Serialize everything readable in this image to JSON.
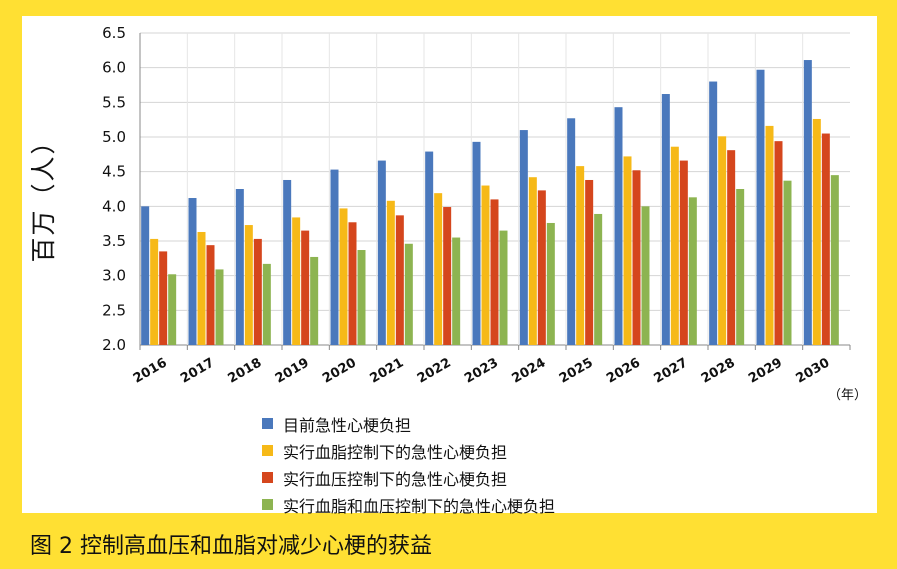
{
  "caption": "图 2  控制高血压和血脂对减少心梗的获益",
  "chart_data": {
    "type": "bar",
    "title": "",
    "ylabel": "百万（人）",
    "xlabel": "（年）",
    "ylim": [
      2.0,
      6.5
    ],
    "yticks": [
      "2.0",
      "2.5",
      "3.0",
      "3.5",
      "4.0",
      "4.5",
      "5.0",
      "5.5",
      "6.0",
      "6.5"
    ],
    "categories": [
      "2016",
      "2017",
      "2018",
      "2019",
      "2020",
      "2021",
      "2022",
      "2023",
      "2024",
      "2025",
      "2026",
      "2027",
      "2028",
      "2029",
      "2030"
    ],
    "series": [
      {
        "name": "目前急性心梗负担",
        "color": "#4A78BC",
        "values": [
          4.0,
          4.12,
          4.25,
          4.38,
          4.53,
          4.66,
          4.79,
          4.93,
          5.1,
          5.27,
          5.43,
          5.62,
          5.8,
          5.97,
          6.11
        ]
      },
      {
        "name": "实行血脂控制下的急性心梗负担",
        "color": "#F6B918",
        "values": [
          3.53,
          3.63,
          3.73,
          3.84,
          3.97,
          4.08,
          4.19,
          4.3,
          4.42,
          4.58,
          4.72,
          4.86,
          5.01,
          5.16,
          5.26
        ]
      },
      {
        "name": "实行血压控制下的急性心梗负担",
        "color": "#D5461D",
        "values": [
          3.35,
          3.44,
          3.53,
          3.65,
          3.77,
          3.87,
          3.99,
          4.1,
          4.23,
          4.38,
          4.52,
          4.66,
          4.81,
          4.94,
          5.05
        ]
      },
      {
        "name": "实行血脂和血压控制下的急性心梗负担",
        "color": "#8DB451",
        "values": [
          3.02,
          3.09,
          3.17,
          3.27,
          3.37,
          3.46,
          3.55,
          3.65,
          3.76,
          3.89,
          4.0,
          4.13,
          4.25,
          4.37,
          4.45
        ]
      }
    ],
    "legend_position": "bottom",
    "grid": true
  }
}
